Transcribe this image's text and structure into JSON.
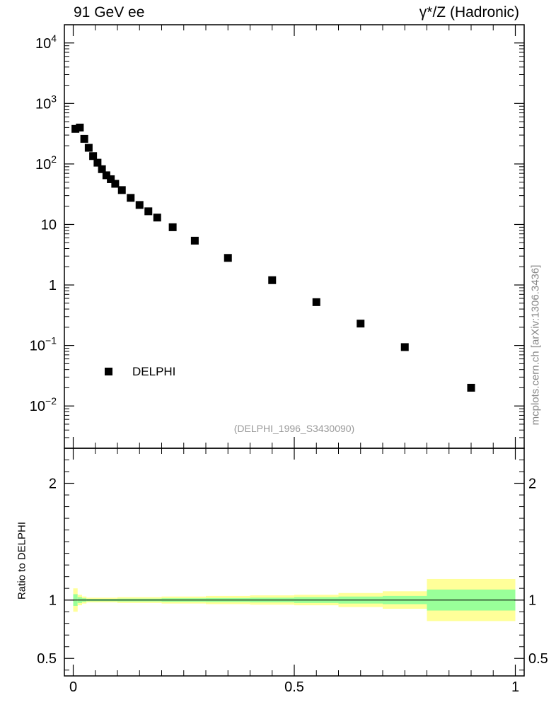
{
  "header": {
    "left_title": "91 GeV ee",
    "right_title": "γ*/Z (Hadronic)"
  },
  "watermark": "mcplots.cern.ch [arXiv:1306.3436]",
  "analysis_id": "(DELPHI_1996_S3430090)",
  "legend": {
    "label": "DELPHI",
    "placement": "lower-left"
  },
  "ratio_ylabel": "Ratio to DELPHI",
  "chart_data": [
    {
      "type": "scatter",
      "panel": "main",
      "yscale": "log",
      "xlim": [
        -0.02,
        1.02
      ],
      "ylim": [
        0.002,
        20000
      ],
      "yticks": [
        {
          "value": 10000,
          "label": "10",
          "exp": "4"
        },
        {
          "value": 1000,
          "label": "10",
          "exp": "3"
        },
        {
          "value": 100,
          "label": "10",
          "exp": "2"
        },
        {
          "value": 10,
          "label": "10",
          "exp": ""
        },
        {
          "value": 1,
          "label": "1",
          "exp": ""
        },
        {
          "value": 0.1,
          "label": "10",
          "exp": "−1"
        },
        {
          "value": 0.01,
          "label": "10",
          "exp": "−2"
        }
      ],
      "series": [
        {
          "name": "DELPHI",
          "color": "#000000",
          "x": [
            0.005,
            0.015,
            0.025,
            0.035,
            0.045,
            0.055,
            0.065,
            0.075,
            0.085,
            0.095,
            0.11,
            0.13,
            0.15,
            0.17,
            0.19,
            0.225,
            0.275,
            0.35,
            0.45,
            0.55,
            0.65,
            0.75,
            0.9
          ],
          "y": [
            380,
            400,
            260,
            185,
            135,
            105,
            82,
            65,
            56,
            47,
            37,
            27.5,
            21,
            16.5,
            13,
            9,
            5.4,
            2.8,
            1.2,
            0.52,
            0.23,
            0.094,
            0.02
          ]
        }
      ]
    },
    {
      "type": "area",
      "panel": "ratio",
      "xlim": [
        -0.02,
        1.02
      ],
      "ylim": [
        0.35,
        2.3
      ],
      "yticks": [
        {
          "value": 0.5,
          "label": "0.5"
        },
        {
          "value": 1,
          "label": "1"
        },
        {
          "value": 2,
          "label": "2"
        }
      ],
      "xticks": [
        {
          "value": 0,
          "label": "0"
        },
        {
          "value": 0.5,
          "label": "0.5"
        },
        {
          "value": 1,
          "label": "1"
        }
      ],
      "reference_line": 1,
      "band_colors": {
        "inner": "#99ff99",
        "outer": "#ffff99"
      },
      "bins": [
        {
          "x0": 0.0,
          "x1": 0.01,
          "inner": 0.05,
          "outer": 0.1
        },
        {
          "x0": 0.01,
          "x1": 0.02,
          "inner": 0.025,
          "outer": 0.045
        },
        {
          "x0": 0.02,
          "x1": 0.03,
          "inner": 0.015,
          "outer": 0.03
        },
        {
          "x0": 0.03,
          "x1": 0.1,
          "inner": 0.01,
          "outer": 0.02
        },
        {
          "x0": 0.1,
          "x1": 0.2,
          "inner": 0.012,
          "outer": 0.025
        },
        {
          "x0": 0.2,
          "x1": 0.3,
          "inner": 0.015,
          "outer": 0.03
        },
        {
          "x0": 0.3,
          "x1": 0.4,
          "inner": 0.017,
          "outer": 0.035
        },
        {
          "x0": 0.4,
          "x1": 0.5,
          "inner": 0.02,
          "outer": 0.04
        },
        {
          "x0": 0.5,
          "x1": 0.6,
          "inner": 0.025,
          "outer": 0.045
        },
        {
          "x0": 0.6,
          "x1": 0.7,
          "inner": 0.03,
          "outer": 0.06
        },
        {
          "x0": 0.7,
          "x1": 0.8,
          "inner": 0.035,
          "outer": 0.075
        },
        {
          "x0": 0.8,
          "x1": 1.0,
          "inner": 0.09,
          "outer": 0.18
        }
      ]
    }
  ]
}
